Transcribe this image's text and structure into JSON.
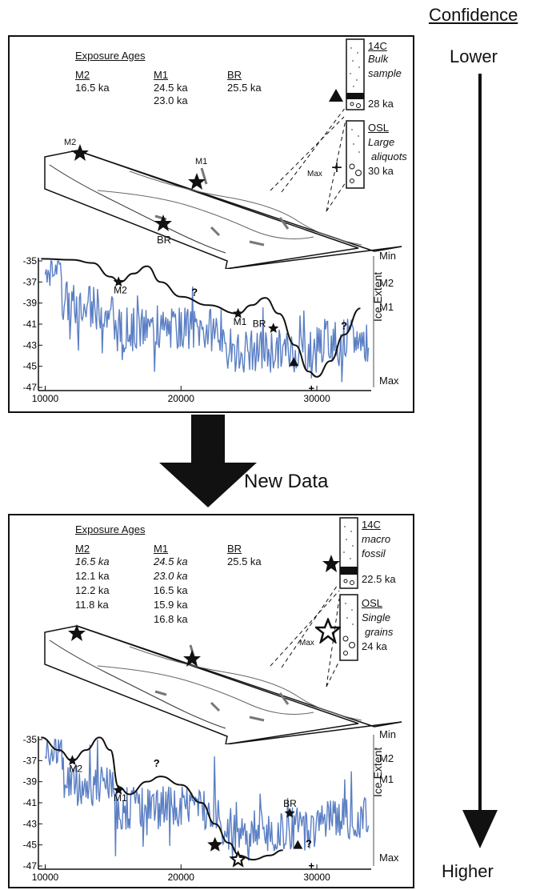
{
  "confidence": {
    "title": "Confidence",
    "lower": "Lower",
    "higher": "Higher"
  },
  "arrow_label": "New Data",
  "colors": {
    "ice_proxy": "#5b7fc4",
    "ink": "#111111"
  },
  "panels": [
    {
      "exposure_title": "Exposure Ages",
      "groups": [
        {
          "name": "M2",
          "ages": [
            "16.5 ka"
          ]
        },
        {
          "name": "M1",
          "ages": [
            "24.5 ka",
            "23.0 ka"
          ]
        },
        {
          "name": "BR",
          "ages": [
            "25.5 ka"
          ]
        }
      ],
      "c14": {
        "label": "14C",
        "desc1": "Bulk",
        "desc2": "sample",
        "age": "28 ka"
      },
      "osl": {
        "label": "OSL",
        "desc1": "Large",
        "desc2": "aliquots",
        "age": "30 ka"
      },
      "block_labels": {
        "m2": "M2",
        "m1": "M1",
        "br": "BR",
        "max": "Max"
      },
      "chart": {
        "x_ticks": [
          "10000",
          "20000",
          "30000"
        ],
        "y_ticks": [
          "-35",
          "-37",
          "-39",
          "-41",
          "-43",
          "-45",
          "-47"
        ],
        "right_labels": [
          "Min",
          "M2",
          "M1",
          "Max"
        ],
        "right_title": "Ice Extent",
        "point_labels": {
          "m2": "M2",
          "m1": "M1",
          "br": "BR",
          "q1": "?",
          "q2": "?",
          "plus": "+"
        }
      }
    },
    {
      "exposure_title": "Exposure Ages",
      "groups": [
        {
          "name": "M2",
          "ages": [
            "16.5 ka",
            "12.1 ka",
            "12.2 ka",
            "11.8 ka"
          ]
        },
        {
          "name": "M1",
          "ages": [
            "24.5 ka",
            "23.0 ka",
            "16.5 ka",
            "15.9 ka",
            "16.8 ka"
          ]
        },
        {
          "name": "BR",
          "ages": [
            "25.5 ka"
          ]
        }
      ],
      "c14": {
        "label": "14C",
        "desc1": "macro",
        "desc2": "fossil",
        "age": "22.5 ka"
      },
      "osl": {
        "label": "OSL",
        "desc1": "Single",
        "desc2": "grains",
        "age": "24 ka"
      },
      "block_labels": {
        "max": "Max"
      },
      "chart": {
        "x_ticks": [
          "10000",
          "20000",
          "30000"
        ],
        "y_ticks": [
          "-35",
          "-37",
          "-39",
          "-41",
          "-43",
          "-45",
          "-47"
        ],
        "right_labels": [
          "Min",
          "M2",
          "M1",
          "Max"
        ],
        "right_title": "Ice Extent",
        "point_labels": {
          "m2": "M2",
          "m1": "M1",
          "br": "BR",
          "q1": "?",
          "q2": "?",
          "q3": "?",
          "plus": "+"
        }
      }
    }
  ]
}
